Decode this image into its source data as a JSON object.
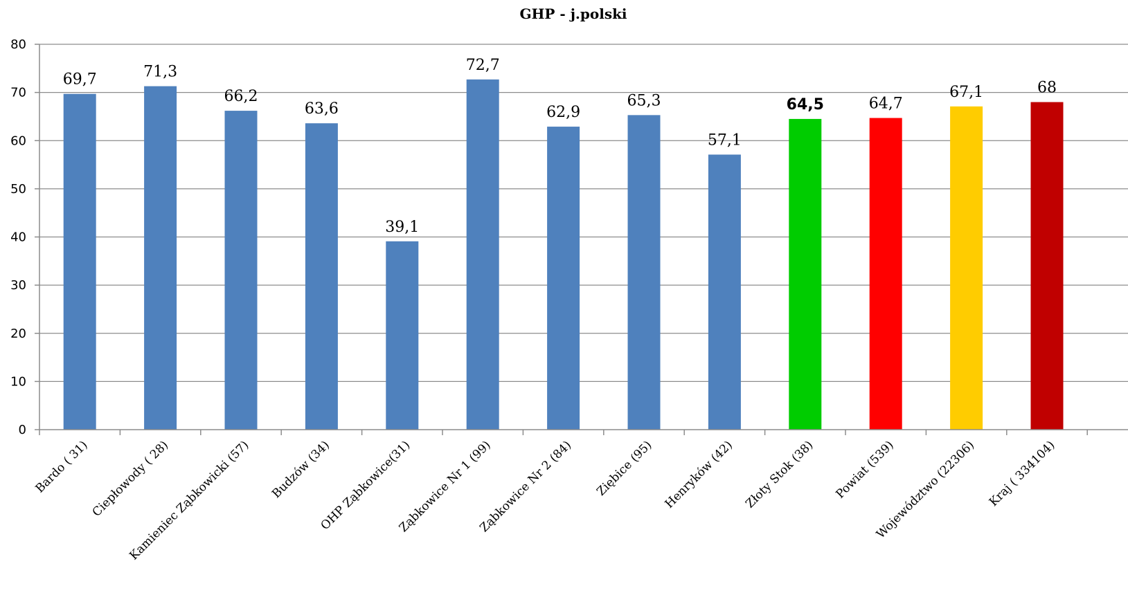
{
  "chart_data": {
    "type": "bar",
    "title": "GHP - j.polski",
    "xlabel": "",
    "ylabel": "",
    "ylim": [
      0,
      80
    ],
    "yticks": [
      0,
      10,
      20,
      30,
      40,
      50,
      60,
      70,
      80
    ],
    "grid": true,
    "legend": "none",
    "categories": [
      "Bardo ( 31)",
      "Ciepłowody ( 28)",
      "Kamieniec Ząbkowicki (57)",
      "Budzów (34)",
      "OHP Ząbkowice(31)",
      "Ząbkowice Nr 1 (99)",
      "Ząbkowice Nr 2 (84)",
      "Ziębice (95)",
      "Henryków (42)",
      "Złoty Stok (38)",
      "Powiat (539)",
      "Województwo (22306)",
      "Kraj ( 334104)"
    ],
    "values": [
      69.7,
      71.3,
      66.2,
      63.6,
      39.1,
      72.7,
      62.9,
      65.3,
      57.1,
      64.5,
      64.7,
      67.1,
      68
    ],
    "data_labels": [
      "69,7",
      "71,3",
      "66,2",
      "63,6",
      "39,1",
      "72,7",
      "62,9",
      "65,3",
      "57,1",
      "64,5",
      "64,7",
      "67,1",
      "68"
    ],
    "bar_colors": [
      "#4f81bd",
      "#4f81bd",
      "#4f81bd",
      "#4f81bd",
      "#4f81bd",
      "#4f81bd",
      "#4f81bd",
      "#4f81bd",
      "#4f81bd",
      "#00cc00",
      "#ff0000",
      "#ffcc00",
      "#c00000"
    ],
    "bold_label_index": 9
  }
}
